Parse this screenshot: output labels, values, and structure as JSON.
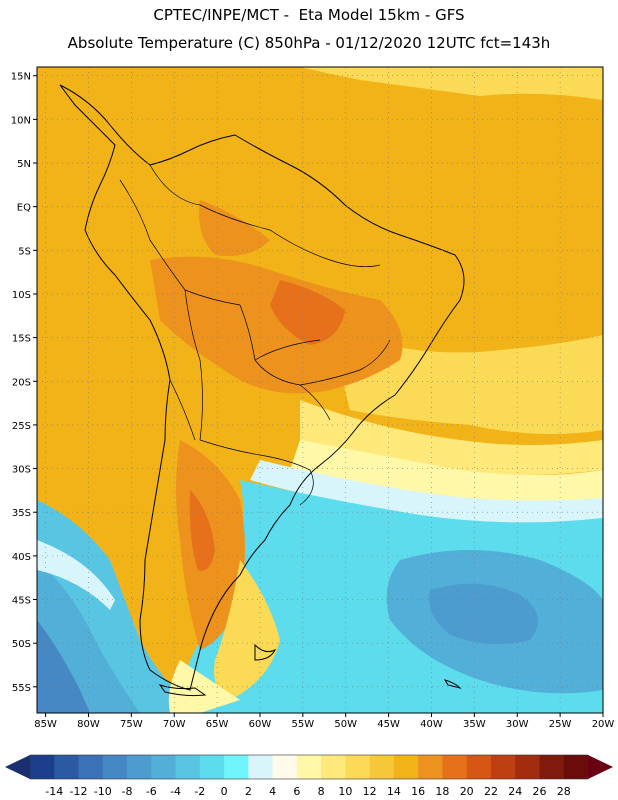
{
  "title_line1": "CPTEC/INPE/MCT -  Eta Model 15km - GFS",
  "title_line2": "Absolute Temperature (C) 850hPa - 01/12/2020 12UTC fct=143h",
  "map": {
    "region": "South America",
    "projection": "lat-lon",
    "lon_range": [
      -86,
      -20
    ],
    "lat_range": [
      -58,
      16
    ],
    "lon_ticks": [
      "85W",
      "80W",
      "75W",
      "70W",
      "65W",
      "60W",
      "55W",
      "50W",
      "45W",
      "40W",
      "35W",
      "30W",
      "25W",
      "20W"
    ],
    "lat_ticks": [
      "15N",
      "10N",
      "5N",
      "EQ",
      "5S",
      "10S",
      "15S",
      "20S",
      "25S",
      "30S",
      "35S",
      "40S",
      "45S",
      "50S",
      "55S"
    ],
    "gridlines": "dotted"
  },
  "colorbar": {
    "labels": [
      "-14",
      "-12",
      "-10",
      "-8",
      "-6",
      "-4",
      "-2",
      "0",
      "2",
      "4",
      "6",
      "8",
      "10",
      "12",
      "14",
      "16",
      "18",
      "20",
      "22",
      "24",
      "26",
      "28"
    ],
    "colors": [
      "#1b3f8e",
      "#2b59a3",
      "#3b71b6",
      "#4588c4",
      "#4c9ccf",
      "#52b0d8",
      "#58c6e3",
      "#5ddced",
      "#6ff5fb",
      "#d8f5fc",
      "#fffbe8",
      "#fff8a8",
      "#ffe97a",
      "#fbdb55",
      "#f6c837",
      "#f2b318",
      "#ec921d",
      "#e6711a",
      "#d65614",
      "#bf3f12",
      "#a32b10",
      "#801a0d",
      "#6a0d0a"
    ],
    "left_arrow_color": "#1b2f70",
    "right_arrow_color": "#6a0013"
  }
}
